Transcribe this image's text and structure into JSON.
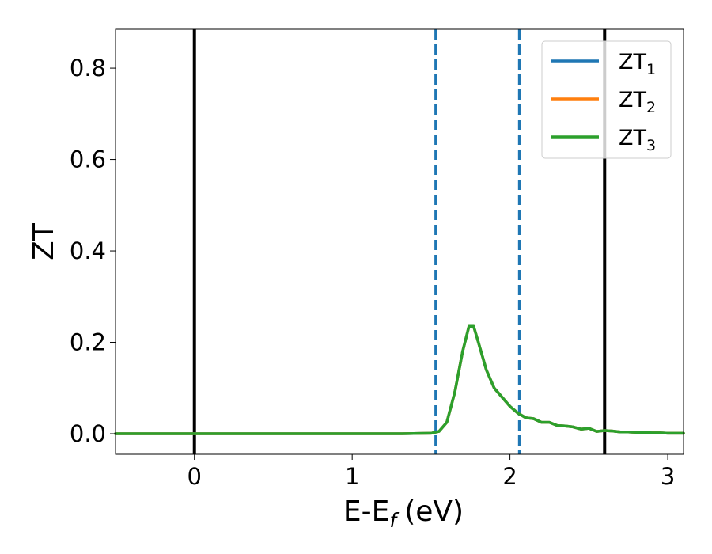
{
  "chart_data": {
    "type": "line",
    "xlabel": "E-E",
    "xlabel_sub": "f",
    "xlabel_unit": "(eV)",
    "ylabel": "ZT",
    "xlim": [
      -0.5,
      3.1
    ],
    "ylim": [
      -0.045,
      0.885
    ],
    "xticks": [
      0,
      1,
      2,
      3
    ],
    "xtick_labels": [
      "0",
      "1",
      "2",
      "3"
    ],
    "yticks": [
      0.0,
      0.2,
      0.4,
      0.6,
      0.8
    ],
    "ytick_labels": [
      "0.0",
      "0.2",
      "0.4",
      "0.6",
      "0.8"
    ],
    "grid": false,
    "legend_position": "top-right",
    "vertical_lines": [
      {
        "x": 0.0,
        "style": "solid",
        "color": "#000000"
      },
      {
        "x": 1.53,
        "style": "dashed",
        "color": "#1f77b4"
      },
      {
        "x": 2.06,
        "style": "dashed",
        "color": "#1f77b4"
      },
      {
        "x": 2.6,
        "style": "solid",
        "color": "#000000"
      }
    ],
    "x": [
      -0.5,
      0.0,
      0.5,
      1.0,
      1.3,
      1.5,
      1.55,
      1.6,
      1.65,
      1.7,
      1.74,
      1.77,
      1.8,
      1.85,
      1.9,
      1.95,
      2.0,
      2.05,
      2.1,
      2.15,
      2.2,
      2.25,
      2.3,
      2.35,
      2.4,
      2.45,
      2.5,
      2.55,
      2.6,
      2.65,
      2.7,
      2.75,
      2.8,
      2.85,
      2.9,
      2.95,
      3.0,
      3.1
    ],
    "series": [
      {
        "name": "ZT",
        "name_sub": "1",
        "color": "#1f77b4",
        "values": [
          0,
          0,
          0,
          0,
          0,
          0.001,
          0.005,
          0.025,
          0.09,
          0.18,
          0.235,
          0.235,
          0.2,
          0.14,
          0.1,
          0.08,
          0.06,
          0.045,
          0.035,
          0.033,
          0.025,
          0.025,
          0.018,
          0.017,
          0.015,
          0.01,
          0.012,
          0.005,
          0.007,
          0.006,
          0.004,
          0.004,
          0.003,
          0.003,
          0.002,
          0.002,
          0.001,
          0.001
        ]
      },
      {
        "name": "ZT",
        "name_sub": "2",
        "color": "#ff7f0e",
        "values": [
          0,
          0,
          0,
          0,
          0,
          0.001,
          0.005,
          0.025,
          0.09,
          0.18,
          0.235,
          0.235,
          0.2,
          0.14,
          0.1,
          0.08,
          0.06,
          0.045,
          0.035,
          0.033,
          0.025,
          0.025,
          0.018,
          0.017,
          0.015,
          0.01,
          0.012,
          0.005,
          0.007,
          0.006,
          0.004,
          0.004,
          0.003,
          0.003,
          0.002,
          0.002,
          0.001,
          0.001
        ]
      },
      {
        "name": "ZT",
        "name_sub": "3",
        "color": "#2ca02c",
        "values": [
          0,
          0,
          0,
          0,
          0,
          0.001,
          0.005,
          0.025,
          0.09,
          0.18,
          0.235,
          0.235,
          0.2,
          0.14,
          0.1,
          0.08,
          0.06,
          0.045,
          0.035,
          0.033,
          0.025,
          0.025,
          0.018,
          0.017,
          0.015,
          0.01,
          0.012,
          0.005,
          0.007,
          0.006,
          0.004,
          0.004,
          0.003,
          0.003,
          0.002,
          0.002,
          0.001,
          0.001
        ]
      }
    ]
  }
}
